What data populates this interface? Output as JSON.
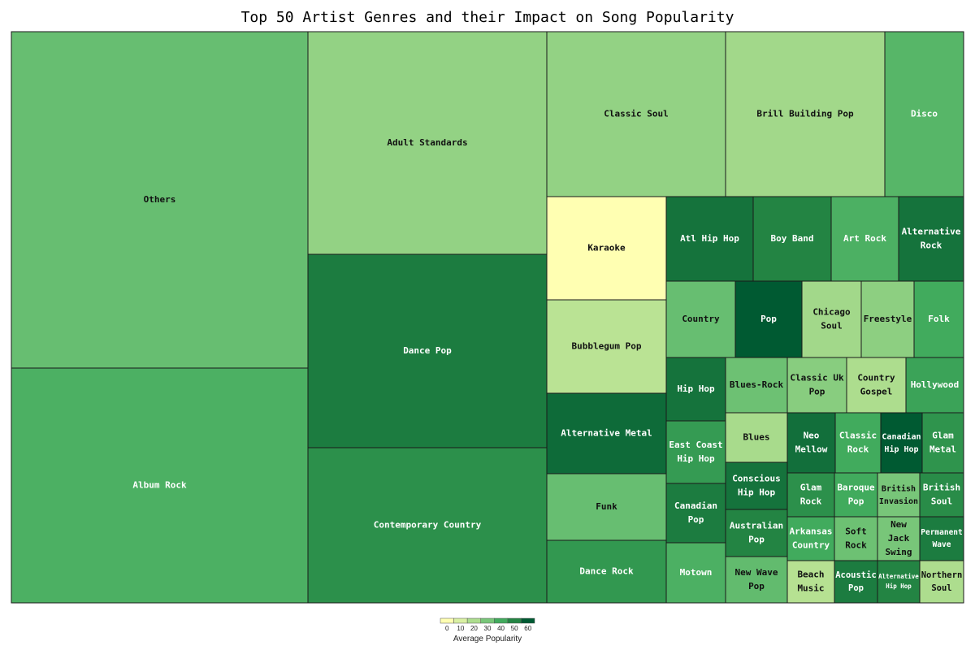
{
  "chart_data": {
    "type": "treemap",
    "title": "Top 50 Artist Genres and their Impact on Song Popularity",
    "colorbar": {
      "title": "Average Popularity",
      "ticks": [
        0,
        10,
        20,
        30,
        40,
        50,
        60
      ],
      "colors": [
        "#ffffb2",
        "#d9f0a3",
        "#addd8e",
        "#78c679",
        "#41ab5d",
        "#238443",
        "#005a32"
      ]
    },
    "tiles": [
      {
        "label": "Others",
        "size": 2200,
        "popularity": 33
      },
      {
        "label": "Album Rock",
        "size": 1530,
        "popularity": 38
      },
      {
        "label": "Adult Standards",
        "size": 1230,
        "popularity": 25
      },
      {
        "label": "Dance Pop",
        "size": 1070,
        "popularity": 52
      },
      {
        "label": "Contemporary Country",
        "size": 860,
        "popularity": 47
      },
      {
        "label": "Classic Soul",
        "size": 670,
        "popularity": 25
      },
      {
        "label": "Brill Building Pop",
        "size": 600,
        "popularity": 22
      },
      {
        "label": "Disco",
        "size": 280,
        "popularity": 36
      },
      {
        "label": "Karaoke",
        "size": 285,
        "popularity": 0
      },
      {
        "label": "Bubblegum Pop",
        "size": 265,
        "popularity": 17
      },
      {
        "label": "Alternative Metal",
        "size": 230,
        "popularity": 56
      },
      {
        "label": "Funk",
        "size": 185,
        "popularity": 33
      },
      {
        "label": "Dance Rock",
        "size": 180,
        "popularity": 45
      },
      {
        "label": "Atl Hip Hop",
        "size": 165,
        "popularity": 54
      },
      {
        "label": "Boy Band",
        "size": 147,
        "popularity": 50
      },
      {
        "label": "Art Rock",
        "size": 127,
        "popularity": 38
      },
      {
        "label": "Alternative Rock",
        "size": 124,
        "popularity": 54
      },
      {
        "label": "Country",
        "size": 118,
        "popularity": 33
      },
      {
        "label": "Pop",
        "size": 114,
        "popularity": 66
      },
      {
        "label": "Chicago Soul",
        "size": 97,
        "popularity": 22
      },
      {
        "label": "Freestyle",
        "size": 87,
        "popularity": 26
      },
      {
        "label": "Folk",
        "size": 80,
        "popularity": 40
      },
      {
        "label": "Hip Hop",
        "size": 92,
        "popularity": 54
      },
      {
        "label": "Blues-Rock",
        "size": 82,
        "popularity": 32
      },
      {
        "label": "Classic Uk Pop",
        "size": 81,
        "popularity": 27
      },
      {
        "label": "Country Gospel",
        "size": 80,
        "popularity": 20
      },
      {
        "label": "Hollywood",
        "size": 78,
        "popularity": 42
      },
      {
        "label": "East Coast Hip Hop",
        "size": 87,
        "popularity": 44
      },
      {
        "label": "Blues",
        "size": 80,
        "popularity": 21
      },
      {
        "label": "Neo Mellow",
        "size": 77,
        "popularity": 55
      },
      {
        "label": "Classic Rock",
        "size": 74,
        "popularity": 40
      },
      {
        "label": "Canadian Hip Hop",
        "size": 62,
        "popularity": 62
      },
      {
        "label": "Glam Metal",
        "size": 67,
        "popularity": 46
      },
      {
        "label": "Conscious Hip Hop",
        "size": 76,
        "popularity": 54
      },
      {
        "label": "Canadian Pop",
        "size": 85,
        "popularity": 52
      },
      {
        "label": "Glam Rock",
        "size": 64,
        "popularity": 47
      },
      {
        "label": "Baroque Pop",
        "size": 63,
        "popularity": 40
      },
      {
        "label": "British Invasion",
        "size": 63,
        "popularity": 30
      },
      {
        "label": "British Soul",
        "size": 63,
        "popularity": 48
      },
      {
        "label": "Australian Pop",
        "size": 72,
        "popularity": 50
      },
      {
        "label": "Arkansas Country",
        "size": 65,
        "popularity": 40
      },
      {
        "label": "Soft Rock",
        "size": 62,
        "popularity": 32
      },
      {
        "label": "New Jack Swing",
        "size": 62,
        "popularity": 30
      },
      {
        "label": "Permanent Wave",
        "size": 62,
        "popularity": 52
      },
      {
        "label": "Motown",
        "size": 90,
        "popularity": 38
      },
      {
        "label": "New Wave Pop",
        "size": 70,
        "popularity": 34
      },
      {
        "label": "Beach Music",
        "size": 62,
        "popularity": 18
      },
      {
        "label": "Acoustic Pop",
        "size": 62,
        "popularity": 52
      },
      {
        "label": "Alternative Hip Hop",
        "size": 62,
        "popularity": 50
      },
      {
        "label": "Northern Soul",
        "size": 62,
        "popularity": 20
      }
    ]
  }
}
